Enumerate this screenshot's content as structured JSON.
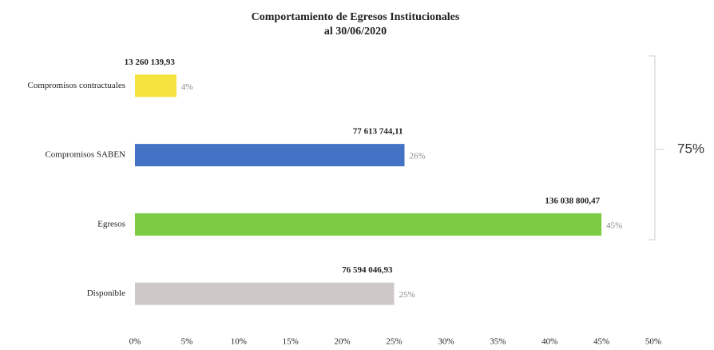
{
  "chart_data": {
    "type": "hbar",
    "title": [
      "Comportamiento de Egresos Institucionales",
      "al 30/06/2020"
    ],
    "categories": [
      "Compromisos contractuales",
      "Compromisos SABEN",
      "Egresos",
      "Disponible"
    ],
    "values": [
      4,
      26,
      45,
      25
    ],
    "value_labels": [
      "4%",
      "26%",
      "45%",
      "25%"
    ],
    "amount_labels": [
      "13 260 139,93",
      "77 613 744,11",
      "136 038 800,47",
      "76 594 046,93"
    ],
    "colors": [
      "#f5e23f",
      "#4472c4",
      "#7ccb45",
      "#cfc8c8"
    ],
    "xlim": [
      0,
      50
    ],
    "xticks": [
      {
        "value": 0,
        "label": "0%"
      },
      {
        "value": 5,
        "label": "5%"
      },
      {
        "value": 10,
        "label": "10%"
      },
      {
        "value": 15,
        "label": "15%"
      },
      {
        "value": 20,
        "label": "20%"
      },
      {
        "value": 25,
        "label": "25%"
      },
      {
        "value": 30,
        "label": "30%"
      },
      {
        "value": 35,
        "label": "35%"
      },
      {
        "value": 40,
        "label": "40%"
      },
      {
        "value": 45,
        "label": "45%"
      },
      {
        "value": 50,
        "label": "50%"
      }
    ],
    "annotation": "75%"
  }
}
